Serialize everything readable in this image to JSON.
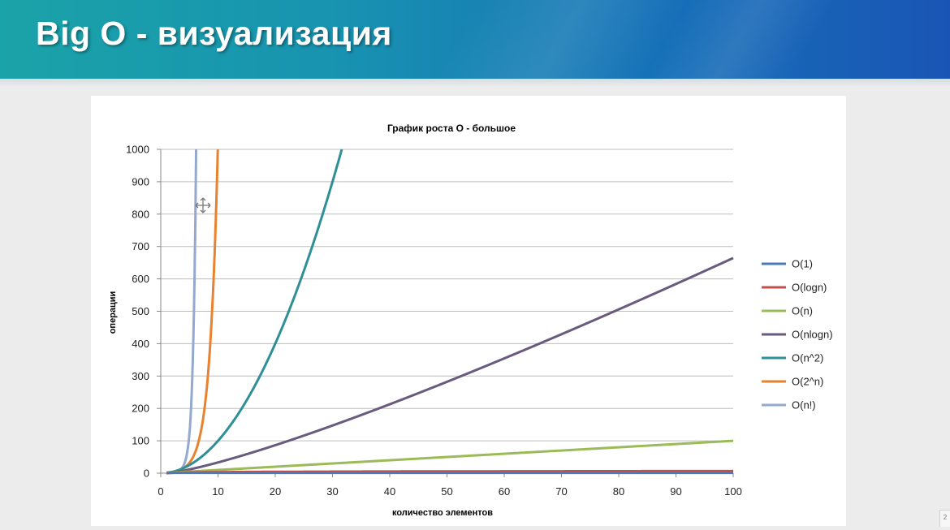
{
  "header": {
    "title": "Big O - визуализация",
    "gradient_colors": [
      "#1aa3a8",
      "#1670b8",
      "#1a55b5"
    ]
  },
  "page_number": "2",
  "chart_data": {
    "type": "line",
    "title": "График роста О - большое",
    "xlabel": "количество элементов",
    "ylabel": "операции",
    "xlim": [
      0,
      100
    ],
    "ylim": [
      0,
      1000
    ],
    "x_ticks": [
      "0",
      "10",
      "20",
      "30",
      "40",
      "50",
      "60",
      "70",
      "80",
      "90",
      "100"
    ],
    "y_ticks": [
      "0",
      "100",
      "200",
      "300",
      "400",
      "500",
      "600",
      "700",
      "800",
      "900",
      "1000"
    ],
    "grid": "horizontal",
    "legend_position": "right",
    "series": [
      {
        "name": "O(1)",
        "color": "#4a7bb7",
        "formula": "const",
        "points": [
          [
            1,
            1
          ],
          [
            100,
            1
          ]
        ]
      },
      {
        "name": "O(logn)",
        "color": "#c0504d",
        "formula": "log2",
        "points": [
          [
            1,
            0
          ],
          [
            10,
            3.3
          ],
          [
            50,
            5.6
          ],
          [
            100,
            6.6
          ]
        ]
      },
      {
        "name": "O(n)",
        "color": "#9bbb59",
        "formula": "n",
        "points": [
          [
            1,
            1
          ],
          [
            50,
            50
          ],
          [
            100,
            100
          ]
        ]
      },
      {
        "name": "O(nlogn)",
        "color": "#6a5a7e",
        "formula": "nlog2n",
        "points": [
          [
            1,
            0
          ],
          [
            20,
            86
          ],
          [
            50,
            282
          ],
          [
            100,
            664
          ]
        ]
      },
      {
        "name": "O(n^2)",
        "color": "#2e8f96",
        "formula": "n2",
        "points": [
          [
            1,
            1
          ],
          [
            10,
            100
          ],
          [
            20,
            400
          ],
          [
            31.6,
            1000
          ]
        ]
      },
      {
        "name": "O(2^n)",
        "color": "#e8822e",
        "formula": "2n",
        "points": [
          [
            1,
            2
          ],
          [
            5,
            32
          ],
          [
            8,
            256
          ],
          [
            9,
            512
          ],
          [
            10,
            1024
          ]
        ]
      },
      {
        "name": "O(n!)",
        "color": "#93a9cf",
        "formula": "fact",
        "points": [
          [
            1,
            1
          ],
          [
            3,
            6
          ],
          [
            5,
            120
          ],
          [
            6,
            720
          ],
          [
            6.1,
            1000
          ]
        ]
      }
    ]
  }
}
